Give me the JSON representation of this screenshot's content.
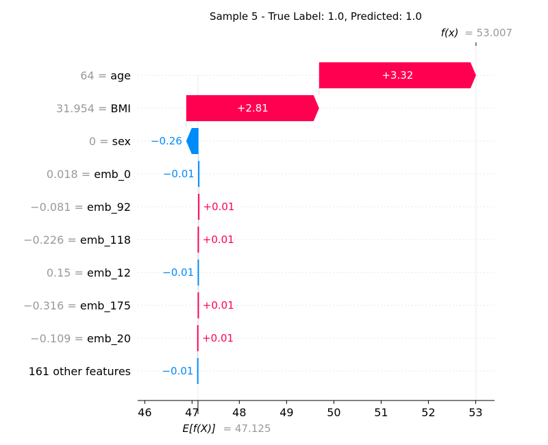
{
  "chart_data": {
    "type": "waterfall",
    "title": "Sample 5 - True Label: 1.0, Predicted: 1.0",
    "base_value": 47.125,
    "base_label": "E[f(X)]",
    "base_value_text": "= 47.125",
    "final_value": 53.007,
    "final_label": "f(x)",
    "final_value_text": "= 53.007",
    "xlim": [
      45.85,
      53.4
    ],
    "xticks": [
      46,
      47,
      48,
      49,
      50,
      51,
      52,
      53
    ],
    "grid": true,
    "features": [
      {
        "value_text": "64",
        "name": "age",
        "label": "+3.32",
        "start": 49.687,
        "end": 53.007
      },
      {
        "value_text": "31.954",
        "name": "BMI",
        "label": "+2.81",
        "start": 46.877,
        "end": 49.687
      },
      {
        "value_text": "0",
        "name": "sex",
        "label": "−0.26",
        "start": 47.137,
        "end": 46.877
      },
      {
        "value_text": "0.018",
        "name": "emb_0",
        "label": "−0.01",
        "start": 47.147,
        "end": 47.137
      },
      {
        "value_text": "−0.081",
        "name": "emb_92",
        "label": "+0.01",
        "start": 47.137,
        "end": 47.147
      },
      {
        "value_text": "−0.226",
        "name": "emb_118",
        "label": "+0.01",
        "start": 47.127,
        "end": 47.137
      },
      {
        "value_text": "0.15",
        "name": "emb_12",
        "label": "−0.01",
        "start": 47.137,
        "end": 47.127
      },
      {
        "value_text": "−0.316",
        "name": "emb_175",
        "label": "+0.01",
        "start": 47.127,
        "end": 47.137
      },
      {
        "value_text": "−0.109",
        "name": "emb_20",
        "label": "+0.01",
        "start": 47.117,
        "end": 47.127
      },
      {
        "value_text": "",
        "name": "161 other features",
        "label": "−0.01",
        "start": 47.125,
        "end": 47.117
      }
    ],
    "colors": {
      "positive": "#ff0051",
      "negative": "#008bfb",
      "grid": "#cccccc",
      "text_grey": "#999999"
    }
  }
}
